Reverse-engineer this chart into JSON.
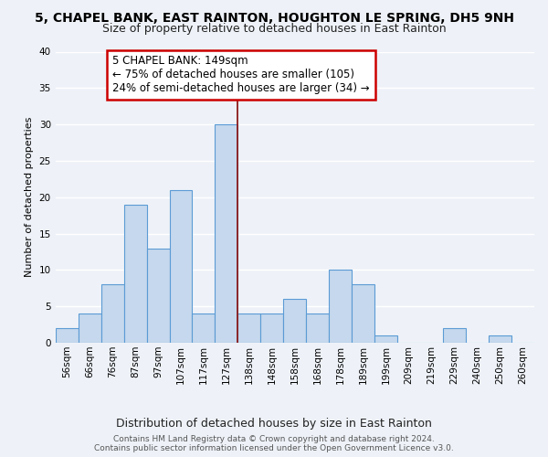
{
  "title": "5, CHAPEL BANK, EAST RAINTON, HOUGHTON LE SPRING, DH5 9NH",
  "subtitle": "Size of property relative to detached houses in East Rainton",
  "xlabel": "Distribution of detached houses by size in East Rainton",
  "ylabel": "Number of detached properties",
  "bar_labels": [
    "56sqm",
    "66sqm",
    "76sqm",
    "87sqm",
    "97sqm",
    "107sqm",
    "117sqm",
    "127sqm",
    "138sqm",
    "148sqm",
    "158sqm",
    "168sqm",
    "178sqm",
    "189sqm",
    "199sqm",
    "209sqm",
    "219sqm",
    "229sqm",
    "240sqm",
    "250sqm",
    "260sqm"
  ],
  "bar_values": [
    2,
    4,
    8,
    19,
    13,
    21,
    4,
    30,
    4,
    4,
    6,
    4,
    10,
    8,
    1,
    0,
    0,
    2,
    0,
    1,
    0
  ],
  "bar_color": "#c5d8ed",
  "bar_edge_color": "#5b9bd5",
  "annotation_title": "5 CHAPEL BANK: 149sqm",
  "annotation_line1": "← 75% of detached houses are smaller (105)",
  "annotation_line2": "24% of semi-detached houses are larger (34) →",
  "annotation_box_color": "#ffffff",
  "annotation_box_edge": "#cc0000",
  "prop_line_index": 8,
  "ylim": [
    0,
    40
  ],
  "yticks": [
    0,
    5,
    10,
    15,
    20,
    25,
    30,
    35,
    40
  ],
  "bg_color": "#eef2f8",
  "grid_color": "#ffffff",
  "footer1": "Contains HM Land Registry data © Crown copyright and database right 2024.",
  "footer2": "Contains public sector information licensed under the Open Government Licence v3.0.",
  "title_fontsize": 10,
  "subtitle_fontsize": 9,
  "ylabel_fontsize": 8,
  "xlabel_fontsize": 9,
  "tick_fontsize": 7.5,
  "annot_fontsize": 8.5
}
